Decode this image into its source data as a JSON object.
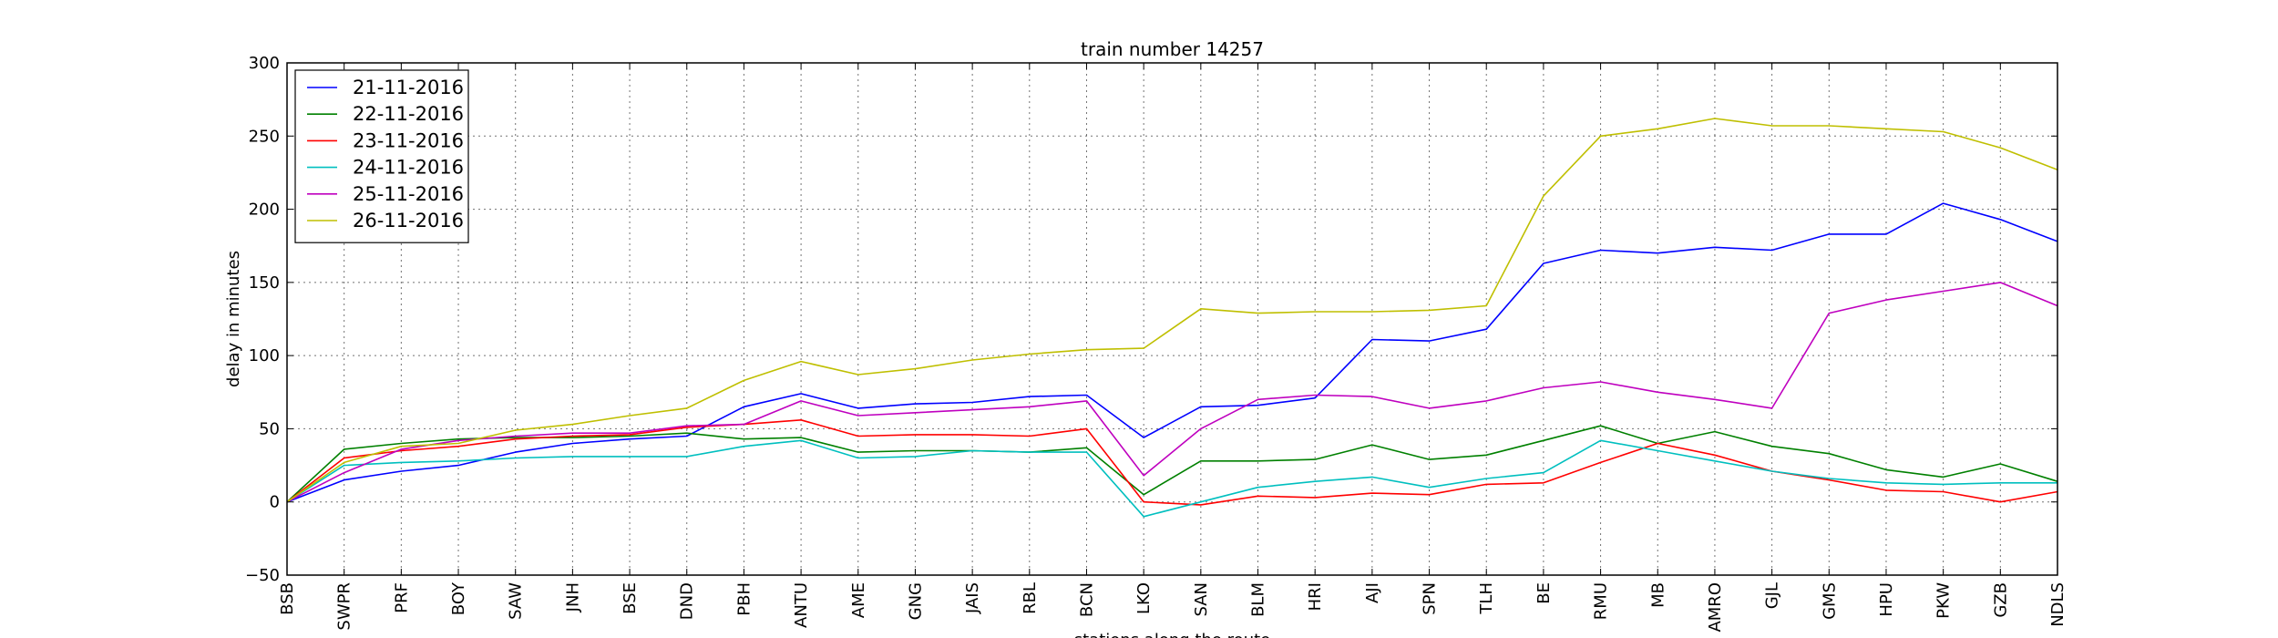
{
  "chart_data": {
    "type": "line",
    "title": "train number 14257",
    "xlabel": "stations along the route",
    "ylabel": "delay in minutes",
    "ylim": [
      -50,
      300
    ],
    "yticks": [
      -50,
      0,
      50,
      100,
      150,
      200,
      250,
      300
    ],
    "grid": true,
    "legend_position": "top-left",
    "categories": [
      "BSB",
      "SWPR",
      "PRF",
      "BOY",
      "SAW",
      "JNH",
      "BSE",
      "DND",
      "PBH",
      "ANTU",
      "AME",
      "GNG",
      "JAIS",
      "RBL",
      "BCN",
      "LKO",
      "SAN",
      "BLM",
      "HRI",
      "AJI",
      "SPN",
      "TLH",
      "BE",
      "RMU",
      "MB",
      "AMRO",
      "GJL",
      "GMS",
      "HPU",
      "PKW",
      "GZB",
      "NDLS"
    ],
    "series": [
      {
        "name": "21-11-2016",
        "color": "#0000ff",
        "values": [
          0,
          15,
          21,
          25,
          34,
          40,
          43,
          45,
          65,
          74,
          64,
          67,
          68,
          72,
          73,
          44,
          65,
          66,
          71,
          111,
          110,
          118,
          163,
          172,
          170,
          174,
          172,
          183,
          183,
          204,
          193,
          178
        ]
      },
      {
        "name": "22-11-2016",
        "color": "#008000",
        "values": [
          0,
          36,
          40,
          43,
          44,
          44,
          45,
          47,
          43,
          44,
          34,
          35,
          35,
          34,
          37,
          5,
          28,
          28,
          29,
          39,
          29,
          32,
          42,
          52,
          40,
          48,
          38,
          33,
          22,
          17,
          26,
          14
        ]
      },
      {
        "name": "23-11-2016",
        "color": "#ff0000",
        "values": [
          0,
          30,
          35,
          38,
          43,
          45,
          46,
          51,
          53,
          56,
          45,
          46,
          46,
          45,
          50,
          0,
          -2,
          4,
          3,
          6,
          5,
          12,
          13,
          27,
          40,
          32,
          21,
          15,
          8,
          7,
          0,
          7
        ]
      },
      {
        "name": "24-11-2016",
        "color": "#00bfbf",
        "values": [
          0,
          25,
          27,
          28,
          30,
          31,
          31,
          31,
          38,
          42,
          30,
          31,
          35,
          34,
          34,
          -10,
          0,
          10,
          14,
          17,
          10,
          16,
          20,
          42,
          35,
          28,
          21,
          16,
          13,
          12,
          13,
          13
        ]
      },
      {
        "name": "25-11-2016",
        "color": "#bf00bf",
        "values": [
          0,
          20,
          36,
          42,
          45,
          47,
          47,
          52,
          53,
          69,
          59,
          61,
          63,
          65,
          69,
          18,
          50,
          70,
          73,
          72,
          64,
          69,
          78,
          82,
          75,
          70,
          64,
          129,
          138,
          144,
          150,
          134
        ]
      },
      {
        "name": "26-11-2016",
        "color": "#bfbf00",
        "values": [
          0,
          27,
          38,
          40,
          49,
          53,
          59,
          64,
          83,
          96,
          87,
          91,
          97,
          101,
          104,
          105,
          132,
          129,
          130,
          130,
          131,
          134,
          209,
          250,
          255,
          262,
          257,
          257,
          255,
          253,
          242,
          227
        ]
      }
    ]
  }
}
